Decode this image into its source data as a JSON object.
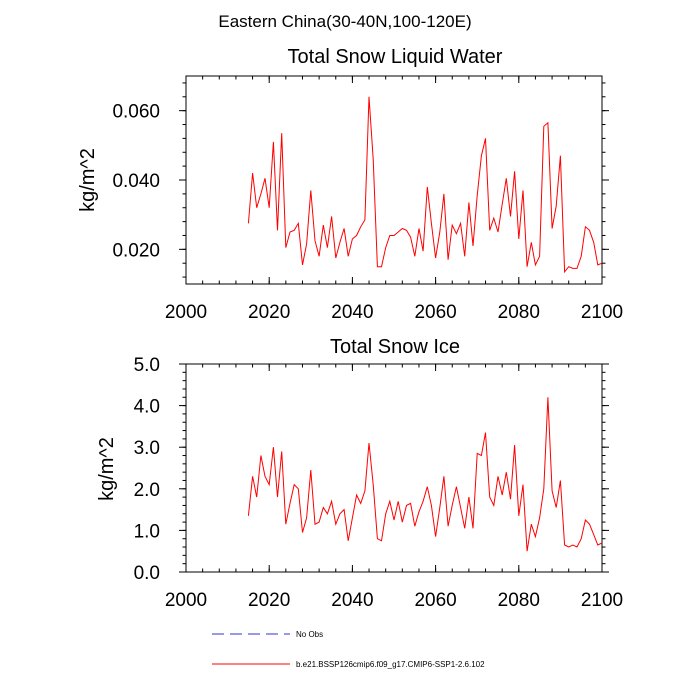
{
  "figure_title": "Eastern China(30-40N,100-120E)",
  "legend": [
    {
      "label": "No Obs",
      "color": "#3333cc",
      "dash": true
    },
    {
      "label": "b.e21.BSSP126cmip6.f09_g17.CMIP6-SSP1-2.6.102",
      "color": "#ff0000",
      "dash": false
    }
  ],
  "chart_data": [
    {
      "type": "line",
      "title": "Total Snow Liquid Water",
      "ylabel": "kg/m^2",
      "xlim": [
        2000,
        2100
      ],
      "ylim": [
        0.01,
        0.07
      ],
      "xticks": [
        2000,
        2020,
        2040,
        2060,
        2080,
        2100
      ],
      "xtick_labels": [
        "2000",
        "2020",
        "2040",
        "2060",
        "2080",
        "2100"
      ],
      "yticks": [
        0.02,
        0.04,
        0.06
      ],
      "ytick_labels": [
        "0.020",
        "0.040",
        "0.060"
      ],
      "grid": false,
      "color": "#ff0000",
      "x": [
        2015,
        2016,
        2017,
        2018,
        2019,
        2020,
        2021,
        2022,
        2023,
        2024,
        2025,
        2026,
        2027,
        2028,
        2029,
        2030,
        2031,
        2032,
        2033,
        2034,
        2035,
        2036,
        2037,
        2038,
        2039,
        2040,
        2041,
        2042,
        2043,
        2044,
        2045,
        2046,
        2047,
        2048,
        2049,
        2050,
        2051,
        2052,
        2053,
        2054,
        2055,
        2056,
        2057,
        2058,
        2059,
        2060,
        2061,
        2062,
        2063,
        2064,
        2065,
        2066,
        2067,
        2068,
        2069,
        2070,
        2071,
        2072,
        2073,
        2074,
        2075,
        2076,
        2077,
        2078,
        2079,
        2080,
        2081,
        2082,
        2083,
        2084,
        2085,
        2086,
        2087,
        2088,
        2089,
        2090,
        2091,
        2092,
        2093,
        2094,
        2095,
        2096,
        2097,
        2098,
        2099,
        2100
      ],
      "values": [
        0.0275,
        0.042,
        0.032,
        0.036,
        0.0405,
        0.032,
        0.051,
        0.0255,
        0.0535,
        0.0205,
        0.025,
        0.0255,
        0.0275,
        0.0155,
        0.0215,
        0.037,
        0.0225,
        0.018,
        0.027,
        0.0205,
        0.0295,
        0.0175,
        0.022,
        0.026,
        0.018,
        0.023,
        0.024,
        0.0265,
        0.0285,
        0.064,
        0.046,
        0.015,
        0.015,
        0.0205,
        0.024,
        0.024,
        0.025,
        0.026,
        0.0255,
        0.0235,
        0.018,
        0.026,
        0.0195,
        0.038,
        0.0275,
        0.0175,
        0.025,
        0.036,
        0.017,
        0.027,
        0.0245,
        0.0275,
        0.018,
        0.0335,
        0.021,
        0.0355,
        0.047,
        0.052,
        0.0255,
        0.029,
        0.025,
        0.033,
        0.0405,
        0.0295,
        0.0425,
        0.023,
        0.037,
        0.015,
        0.022,
        0.0155,
        0.018,
        0.0555,
        0.0565,
        0.026,
        0.0325,
        0.047,
        0.0135,
        0.015,
        0.0145,
        0.0145,
        0.018,
        0.0265,
        0.0255,
        0.022,
        0.0155,
        0.016
      ]
    },
    {
      "type": "line",
      "title": "Total Snow Ice",
      "ylabel": "kg/m^2",
      "xlim": [
        2000,
        2100
      ],
      "ylim": [
        0.0,
        5.0
      ],
      "xticks": [
        2000,
        2020,
        2040,
        2060,
        2080,
        2100
      ],
      "xtick_labels": [
        "2000",
        "2020",
        "2040",
        "2060",
        "2080",
        "2100"
      ],
      "yticks": [
        0.0,
        1.0,
        2.0,
        3.0,
        4.0,
        5.0
      ],
      "ytick_labels": [
        "0.0",
        "1.0",
        "2.0",
        "3.0",
        "4.0",
        "5.0"
      ],
      "grid": false,
      "color": "#ff0000",
      "x": [
        2015,
        2016,
        2017,
        2018,
        2019,
        2020,
        2021,
        2022,
        2023,
        2024,
        2025,
        2026,
        2027,
        2028,
        2029,
        2030,
        2031,
        2032,
        2033,
        2034,
        2035,
        2036,
        2037,
        2038,
        2039,
        2040,
        2041,
        2042,
        2043,
        2044,
        2045,
        2046,
        2047,
        2048,
        2049,
        2050,
        2051,
        2052,
        2053,
        2054,
        2055,
        2056,
        2057,
        2058,
        2059,
        2060,
        2061,
        2062,
        2063,
        2064,
        2065,
        2066,
        2067,
        2068,
        2069,
        2070,
        2071,
        2072,
        2073,
        2074,
        2075,
        2076,
        2077,
        2078,
        2079,
        2080,
        2081,
        2082,
        2083,
        2084,
        2085,
        2086,
        2087,
        2088,
        2089,
        2090,
        2091,
        2092,
        2093,
        2094,
        2095,
        2096,
        2097,
        2098,
        2099,
        2100
      ],
      "values": [
        1.35,
        2.3,
        1.8,
        2.8,
        2.3,
        2.1,
        3.0,
        1.8,
        2.9,
        1.15,
        1.65,
        2.1,
        2.0,
        0.95,
        1.3,
        2.45,
        1.15,
        1.2,
        1.55,
        1.4,
        1.7,
        1.15,
        1.4,
        1.5,
        0.75,
        1.3,
        1.85,
        1.65,
        1.95,
        3.1,
        2.1,
        0.8,
        0.75,
        1.4,
        1.7,
        1.25,
        1.7,
        1.2,
        1.6,
        1.65,
        1.1,
        1.45,
        1.7,
        2.05,
        1.6,
        0.85,
        1.55,
        2.3,
        1.1,
        1.6,
        2.05,
        1.55,
        1.05,
        1.8,
        1.05,
        2.85,
        2.8,
        3.35,
        1.8,
        1.6,
        2.3,
        1.85,
        2.4,
        1.75,
        3.05,
        1.35,
        2.1,
        0.5,
        1.15,
        0.85,
        1.3,
        2.0,
        4.2,
        1.95,
        1.55,
        2.2,
        0.65,
        0.6,
        0.65,
        0.6,
        0.8,
        1.25,
        1.15,
        0.9,
        0.65,
        0.7
      ]
    }
  ]
}
